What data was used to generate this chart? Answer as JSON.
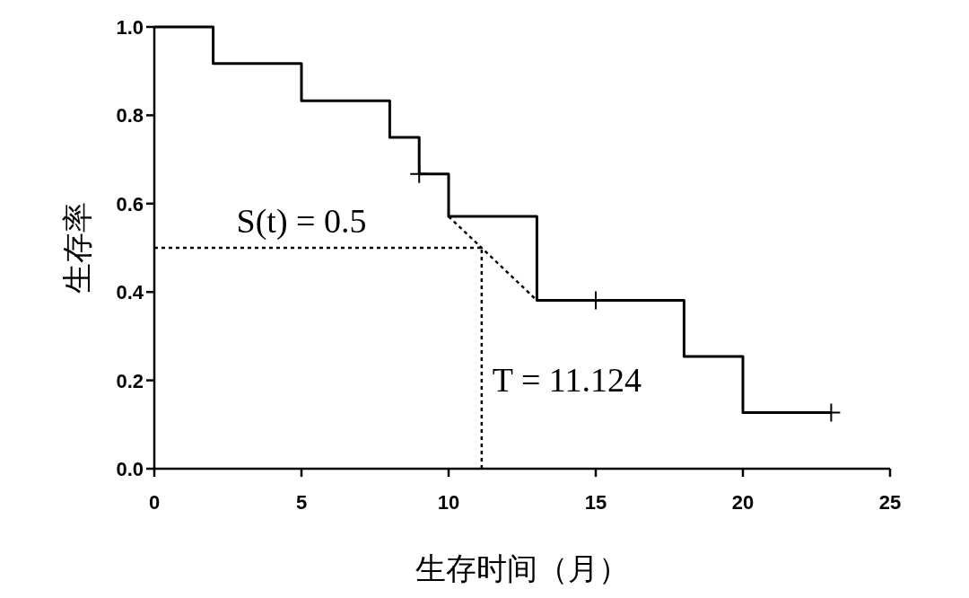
{
  "chart_data": {
    "type": "step",
    "xlabel": "生存时间（月）",
    "ylabel": "生存率",
    "xlim": [
      0,
      25
    ],
    "xticks": [
      0,
      5,
      10,
      15,
      20,
      25
    ],
    "ylim": [
      0,
      1
    ],
    "yticks": [
      {
        "value": 0,
        "label": "0.0"
      },
      0.2,
      0.4,
      0.6,
      0.8,
      {
        "value": 1,
        "label": "1.0"
      }
    ],
    "grid": false,
    "series": [
      {
        "color": "#000000",
        "line_style": "solid",
        "marker": "none",
        "x": [
          0,
          2,
          5,
          8,
          9,
          10,
          13,
          18,
          20,
          23
        ],
        "values": [
          1,
          0.917,
          0.833,
          0.75,
          0.667,
          0.571,
          0.381,
          0.254,
          0.127,
          0.127
        ]
      },
      {
        "type": "scatter",
        "color": "#000000",
        "marker": "cross",
        "x": [
          9,
          15,
          23
        ],
        "values": [
          0.667,
          0.381,
          0.127
        ]
      },
      {
        "type": "line",
        "color": "#000000",
        "line_style": "dotted",
        "marker": "none",
        "x": [
          10,
          13
        ],
        "values": [
          0.571,
          0.381
        ]
      },
      {
        "type": "line",
        "color": "#000000",
        "line_style": "dotted",
        "marker": "none",
        "x": [
          0,
          11.124
        ],
        "values": [
          0.5,
          0.5
        ]
      },
      {
        "type": "line",
        "color": "#000000",
        "line_style": "dotted",
        "marker": "none",
        "x": [
          11.124,
          11.124
        ],
        "values": [
          0,
          0.5
        ]
      }
    ],
    "annotations": [
      {
        "text": "S(t) = 0.5",
        "x": 5,
        "y": 0.5
      },
      {
        "text": "T = 11.124",
        "x": 11.124,
        "y": 0.2
      }
    ]
  }
}
